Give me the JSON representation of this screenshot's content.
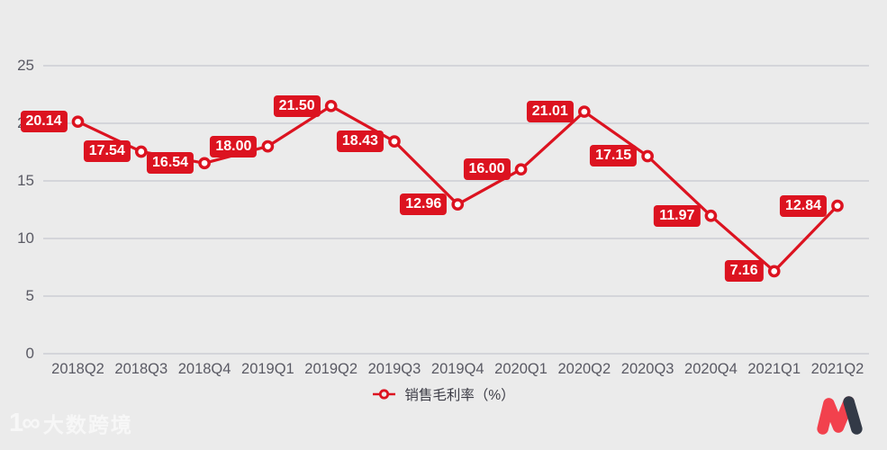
{
  "chart_data": {
    "type": "line",
    "title": "",
    "categories": [
      "2018Q2",
      "2018Q3",
      "2018Q4",
      "2019Q1",
      "2019Q2",
      "2019Q3",
      "2019Q4",
      "2020Q1",
      "2020Q2",
      "2020Q3",
      "2020Q4",
      "2021Q1",
      "2021Q2"
    ],
    "series": [
      {
        "name": "销售毛利率（%）",
        "values": [
          20.14,
          17.54,
          16.54,
          18.0,
          21.5,
          18.43,
          12.96,
          16.0,
          21.01,
          17.15,
          11.97,
          7.16,
          12.84
        ],
        "value_labels": [
          "20.14",
          "17.54",
          "16.54",
          "18.00",
          "21.50",
          "18.43",
          "12.96",
          "16.00",
          "21.01",
          "17.15",
          "11.97",
          "7.16",
          "12.84"
        ],
        "color": "#dc1320",
        "marker": "hollow-circle"
      }
    ],
    "xlabel": "",
    "ylabel": "",
    "ylim": [
      0,
      25
    ],
    "yticks": [
      0,
      5,
      10,
      15,
      20,
      25
    ],
    "grid": "horizontal",
    "legend_position": "bottom"
  },
  "legend": {
    "items": [
      {
        "label": "销售毛利率（%）",
        "color": "#dc1320"
      }
    ]
  },
  "watermark": {
    "icon_text": "1∞",
    "brand_text": "大数跨境"
  },
  "logo": {
    "name": "M"
  },
  "colors": {
    "background": "#ebebeb",
    "grid": "#c6c8cf",
    "axis_text": "#5a5a64",
    "series_red": "#dc1320",
    "value_label_text": "#ffffff",
    "legend_text": "#3c3c46",
    "logo_red": "#f2414d",
    "logo_dark": "#333a47"
  }
}
